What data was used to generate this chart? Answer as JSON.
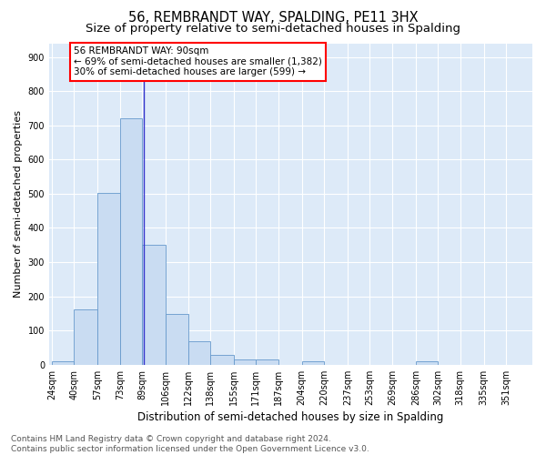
{
  "title": "56, REMBRANDT WAY, SPALDING, PE11 3HX",
  "subtitle": "Size of property relative to semi-detached houses in Spalding",
  "xlabel": "Distribution of semi-detached houses by size in Spalding",
  "ylabel": "Number of semi-detached properties",
  "bin_labels": [
    "24sqm",
    "40sqm",
    "57sqm",
    "73sqm",
    "89sqm",
    "106sqm",
    "122sqm",
    "138sqm",
    "155sqm",
    "171sqm",
    "187sqm",
    "204sqm",
    "220sqm",
    "237sqm",
    "253sqm",
    "269sqm",
    "286sqm",
    "302sqm",
    "318sqm",
    "335sqm",
    "351sqm"
  ],
  "bin_edges": [
    24,
    40,
    57,
    73,
    89,
    106,
    122,
    138,
    155,
    171,
    187,
    204,
    220,
    237,
    253,
    269,
    286,
    302,
    318,
    335,
    351,
    370
  ],
  "bar_values": [
    10,
    163,
    503,
    720,
    350,
    148,
    70,
    30,
    15,
    15,
    0,
    10,
    0,
    0,
    0,
    0,
    10,
    0,
    0,
    0,
    0
  ],
  "bar_color": "#c9dcf2",
  "bar_edge_color": "#6699cc",
  "property_line_x": 90,
  "property_line_color": "#3333cc",
  "annotation_line1": "56 REMBRANDT WAY: 90sqm",
  "annotation_line2": "← 69% of semi-detached houses are smaller (1,382)",
  "annotation_line3": "30% of semi-detached houses are larger (599) →",
  "annotation_box_color": "white",
  "annotation_box_edge": "red",
  "ylim": [
    0,
    940
  ],
  "yticks": [
    0,
    100,
    200,
    300,
    400,
    500,
    600,
    700,
    800,
    900
  ],
  "background_color": "#ddeaf8",
  "grid_color": "white",
  "footer_text": "Contains HM Land Registry data © Crown copyright and database right 2024.\nContains public sector information licensed under the Open Government Licence v3.0.",
  "title_fontsize": 10.5,
  "subtitle_fontsize": 9.5,
  "xlabel_fontsize": 8.5,
  "ylabel_fontsize": 8,
  "tick_fontsize": 7,
  "annotation_fontsize": 7.5,
  "footer_fontsize": 6.5
}
